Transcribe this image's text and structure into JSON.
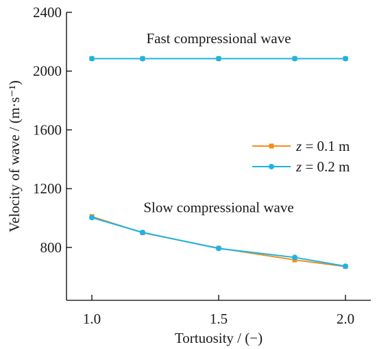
{
  "chart_data": {
    "type": "line",
    "xlabel": "Tortuosity / (−)",
    "ylabel": "Velocity of wave / (m·s⁻¹)",
    "xlim": [
      0.9,
      2.1
    ],
    "ylim": [
      440,
      2400
    ],
    "xticks": [
      1.0,
      1.5,
      2.0
    ],
    "xtick_labels": [
      "1.0",
      "1.5",
      "2.0"
    ],
    "yticks": [
      800,
      1200,
      1600,
      2000,
      2400
    ],
    "ytick_labels": [
      "800",
      "1200",
      "1600",
      "2000",
      "2400"
    ],
    "grid": false,
    "legend_position": "right-middle",
    "annotations": [
      {
        "text": "Fast compressional wave",
        "x": 1.5,
        "y": 2190
      },
      {
        "text": "Slow compressional wave",
        "x": 1.5,
        "y": 1040
      }
    ],
    "series": [
      {
        "name_var": "z",
        "name_rest": " = 0.1 m",
        "color": "#f28e1c",
        "marker": "square",
        "groups": [
          {
            "x": [
              1.0,
              1.2,
              1.5,
              1.8,
              2.0
            ],
            "y": [
              2085,
              2085,
              2085,
              2085,
              2085
            ]
          },
          {
            "x": [
              1.0,
              1.2,
              1.5,
              1.8,
              2.0
            ],
            "y": [
              1010,
              900,
              795,
              715,
              670
            ]
          }
        ]
      },
      {
        "name_var": "z",
        "name_rest": " = 0.2 m",
        "color": "#1ab4e6",
        "marker": "circle",
        "groups": [
          {
            "x": [
              1.0,
              1.2,
              1.5,
              1.8,
              2.0
            ],
            "y": [
              2085,
              2085,
              2085,
              2085,
              2085
            ]
          },
          {
            "x": [
              1.0,
              1.2,
              1.5,
              1.8,
              2.0
            ],
            "y": [
              1003,
              902,
              793,
              732,
              672
            ]
          }
        ]
      }
    ]
  }
}
